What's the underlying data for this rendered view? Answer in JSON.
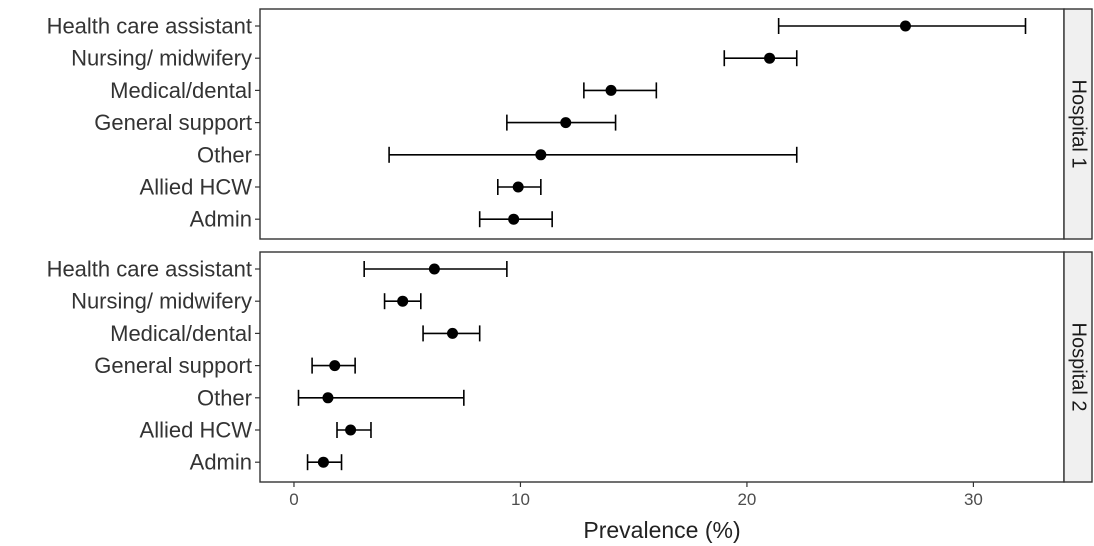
{
  "chart_data": {
    "type": "forest",
    "xlabel": "Prevalence (%)",
    "xticks": [
      0,
      10,
      20,
      30
    ],
    "xlim": [
      -1.5,
      34
    ],
    "grid": false,
    "categories": [
      "Health care assistant",
      "Nursing/ midwifery",
      "Medical/dental",
      "General support",
      "Other",
      "Allied HCW",
      "Admin"
    ],
    "panels": [
      {
        "label": "Hospital 1",
        "points": [
          {
            "category": "Health care assistant",
            "estimate": 27.0,
            "lower": 21.4,
            "upper": 32.3
          },
          {
            "category": "Nursing/ midwifery",
            "estimate": 21.0,
            "lower": 19.0,
            "upper": 22.2
          },
          {
            "category": "Medical/dental",
            "estimate": 14.0,
            "lower": 12.8,
            "upper": 16.0
          },
          {
            "category": "General support",
            "estimate": 12.0,
            "lower": 9.4,
            "upper": 14.2
          },
          {
            "category": "Other",
            "estimate": 10.9,
            "lower": 4.2,
            "upper": 22.2
          },
          {
            "category": "Allied HCW",
            "estimate": 9.9,
            "lower": 9.0,
            "upper": 10.9
          },
          {
            "category": "Admin",
            "estimate": 9.7,
            "lower": 8.2,
            "upper": 11.4
          }
        ]
      },
      {
        "label": "Hospital 2",
        "points": [
          {
            "category": "Health care assistant",
            "estimate": 6.2,
            "lower": 3.1,
            "upper": 9.4
          },
          {
            "category": "Nursing/ midwifery",
            "estimate": 4.8,
            "lower": 4.0,
            "upper": 5.6
          },
          {
            "category": "Medical/dental",
            "estimate": 7.0,
            "lower": 5.7,
            "upper": 8.2
          },
          {
            "category": "General support",
            "estimate": 1.8,
            "lower": 0.8,
            "upper": 2.7
          },
          {
            "category": "Other",
            "estimate": 1.5,
            "lower": 0.2,
            "upper": 7.5
          },
          {
            "category": "Allied HCW",
            "estimate": 2.5,
            "lower": 1.9,
            "upper": 3.4
          },
          {
            "category": "Admin",
            "estimate": 1.3,
            "lower": 0.6,
            "upper": 2.1
          }
        ]
      }
    ],
    "colors": {
      "point": "#000000",
      "panel_border": "#333333",
      "strip_fill": "#f0f0f0",
      "strip_border": "#333333"
    }
  }
}
